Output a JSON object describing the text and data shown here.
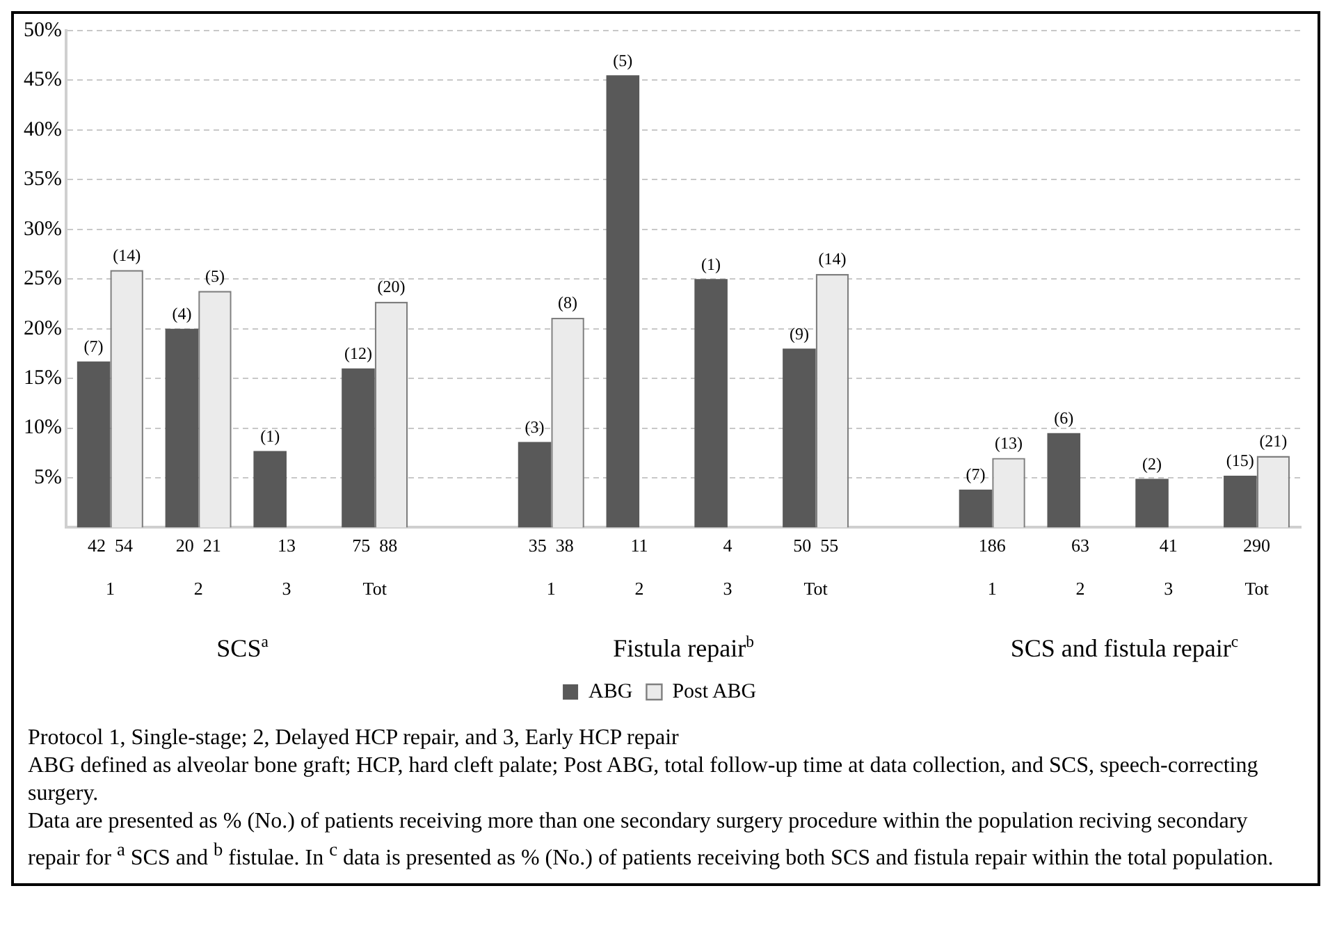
{
  "chart_data": {
    "type": "bar",
    "categories": [
      "42  54\n\n1",
      "20  21\n\n2",
      "13\n\n3",
      "75  88\n\nTot",
      null,
      "35  38\n\n1",
      "11\n\n2",
      "4\n\n3",
      "50  55\n\nTot",
      null,
      "186\n\n1",
      "63\n\n2",
      "41\n\n3",
      "290\n\nTot"
    ],
    "series": [
      {
        "name": "ABG",
        "color": "#595959",
        "values": [
          16.7,
          20,
          7.7,
          16,
          null,
          8.6,
          45.5,
          25,
          18,
          null,
          3.8,
          9.5,
          4.9,
          5.2
        ]
      },
      {
        "name": "Post ABG",
        "color": "#ebebeb",
        "values": [
          25.9,
          23.8,
          null,
          22.7,
          null,
          21.1,
          null,
          null,
          25.5,
          null,
          7,
          null,
          null,
          7.2
        ]
      }
    ],
    "ylim": [
      0,
      50
    ],
    "yticks": [
      {
        "value": 5,
        "label": "5%"
      },
      {
        "value": 10,
        "label": "10%"
      },
      {
        "value": 15,
        "label": "15%"
      },
      {
        "value": 20,
        "label": "20%"
      },
      {
        "value": 25,
        "label": "25%"
      },
      {
        "value": 30,
        "label": "30%"
      },
      {
        "value": 35,
        "label": "35%"
      },
      {
        "value": 40,
        "label": "40%"
      },
      {
        "value": 45,
        "label": "45%"
      },
      {
        "value": 50,
        "label": "50%"
      }
    ],
    "grid": "y",
    "legend": "bottom",
    "annotations": [
      "SCS$^{a}$",
      "Fistula repair$^{b}$",
      "SCS and fistula repair$^{c}$",
      {
        "text": "(7)",
        "x": "42  54\n\n1",
        "y": 16.7
      },
      {
        "text": "(14)",
        "x": "42  54\n\n1",
        "y": 25.9
      },
      {
        "text": "(4)",
        "x": "20  21\n\n2",
        "y": 20
      },
      {
        "text": "(5)",
        "x": "20  21\n\n2",
        "y": 23.8
      },
      {
        "text": "(1)",
        "x": "13\n\n3",
        "y": 7.7
      },
      {
        "text": "(12)",
        "x": "75  88\n\nTot",
        "y": 16
      },
      {
        "text": "(20)",
        "x": "75  88\n\nTot",
        "y": 22.7
      },
      {
        "text": "(3)",
        "x": "35  38\n\n1",
        "y": 8.6
      },
      {
        "text": "(8)",
        "x": "35  38\n\n1",
        "y": 21.1
      },
      {
        "text": "(5)",
        "x": "11\n\n2",
        "y": 45.5
      },
      {
        "text": "(1)",
        "x": "4\n\n3",
        "y": 25
      },
      {
        "text": "(9)",
        "x": "50  55\n\nTot",
        "y": 18
      },
      {
        "text": "(14)",
        "x": "50  55\n\nTot",
        "y": 25.5
      },
      {
        "text": "(7)",
        "x": "186\n\n1",
        "y": 3.8
      },
      {
        "text": "(13)",
        "x": "186\n\n1",
        "y": 7
      },
      {
        "text": "(6)",
        "x": "63\n\n2",
        "y": 9.5
      },
      {
        "text": "(2)",
        "x": "41\n\n3",
        "y": 4.9
      },
      {
        "text": "(15)",
        "x": "290\n\nTot",
        "y": 5.2
      },
      {
        "text": "(21)",
        "x": "290\n\nTot",
        "y": 7.2
      },
      "Protocol 1, Single-stage; 2, Delayed HCP repair, and 3, Early HCP repair",
      "ABG defined as alveolar bone graft; HCP, hard cleft palate; Post ABG, total follow-up time at data collection, and SCS, speech-correcting surgery.",
      "Data are presented as % (No.) of patients receiving more than one secondary surgery procedure within the population reciving secondary repair for  $^{a}$ SCS and $^{b}$ fistulae. In $^{c}$ data is presented as % (No.) of patients receiving both SCS and fistula repair within the total population."
    ]
  }
}
